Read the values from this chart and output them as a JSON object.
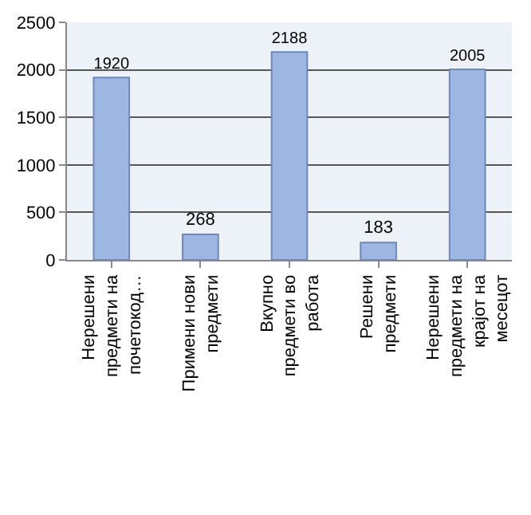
{
  "chart_data": {
    "type": "bar",
    "categories": [
      "Нерешени предмети на почетокод…",
      "Примени нови предмети",
      "Вкупно предмети во работа",
      "Решени предмети",
      "Нерешени предмети на крајот на месецот"
    ],
    "values": [
      1920,
      268,
      2188,
      183,
      2005
    ],
    "color": "#9db6e2",
    "ylim": [
      0,
      2500
    ],
    "yticks": [
      0,
      500,
      1000,
      1500,
      2000,
      2500
    ],
    "grid": "y",
    "data_labels": true,
    "legend": false
  }
}
